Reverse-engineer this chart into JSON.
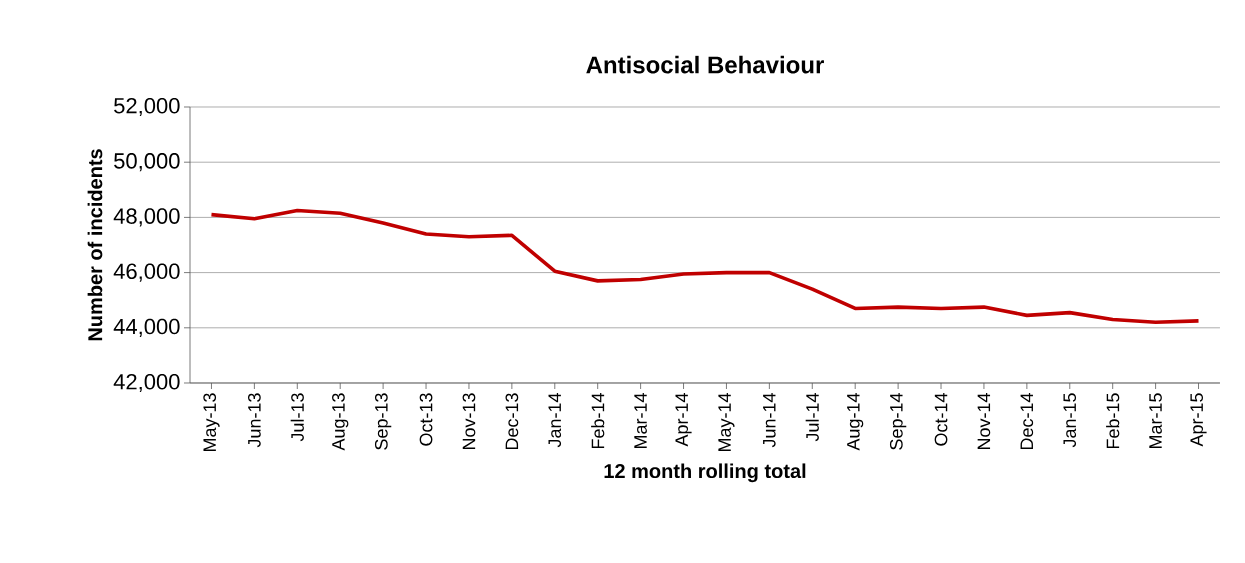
{
  "chart_data": {
    "type": "line",
    "title": "Antisocial Behaviour",
    "xlabel": "12 month rolling total",
    "ylabel": "Number of incidents",
    "categories": [
      "May-13",
      "Jun-13",
      "Jul-13",
      "Aug-13",
      "Sep-13",
      "Oct-13",
      "Nov-13",
      "Dec-13",
      "Jan-14",
      "Feb-14",
      "Mar-14",
      "Apr-14",
      "May-14",
      "Jun-14",
      "Jul-14",
      "Aug-14",
      "Sep-14",
      "Oct-14",
      "Nov-14",
      "Dec-14",
      "Jan-15",
      "Feb-15",
      "Mar-15",
      "Apr-15"
    ],
    "series": [
      {
        "color": "#c00000",
        "values": [
          48100,
          47950,
          48250,
          48150,
          47800,
          47400,
          47300,
          47350,
          46050,
          45700,
          45750,
          45950,
          46000,
          46000,
          45400,
          44700,
          44750,
          44700,
          44750,
          44450,
          44550,
          44300,
          44200,
          44250
        ]
      }
    ],
    "ylim": [
      42000,
      52000
    ],
    "yticks": [
      {
        "value": 42000,
        "label": "42,000"
      },
      {
        "value": 44000,
        "label": "44,000"
      },
      {
        "value": 46000,
        "label": "46,000"
      },
      {
        "value": 48000,
        "label": "48,000"
      },
      {
        "value": 50000,
        "label": "50,000"
      },
      {
        "value": 52000,
        "label": "52,000"
      }
    ],
    "grid": "y"
  }
}
